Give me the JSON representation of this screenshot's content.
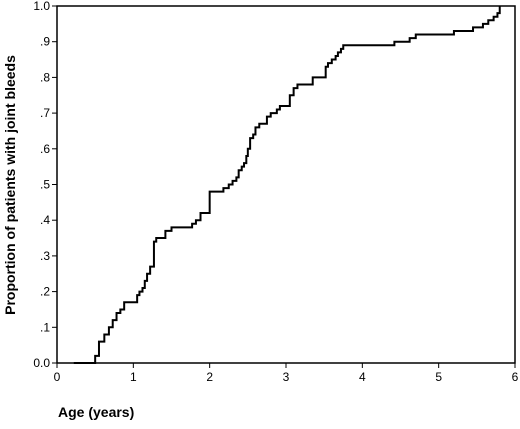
{
  "chart_data": {
    "type": "line",
    "step": true,
    "title": "",
    "xlabel": "Age (years)",
    "ylabel": "Proportion of patients with joint bleeds",
    "xlim": [
      0,
      6
    ],
    "ylim": [
      0,
      1
    ],
    "x_ticks": [
      0,
      1,
      2,
      3,
      4,
      5,
      6
    ],
    "x_tick_labels": [
      "0",
      "1",
      "2",
      "3",
      "4",
      "5",
      "6"
    ],
    "y_ticks": [
      0,
      0.1,
      0.2,
      0.3,
      0.4,
      0.5,
      0.6,
      0.7,
      0.8,
      0.9,
      1.0
    ],
    "y_tick_labels": [
      "0.0",
      ".1",
      ".2",
      ".3",
      ".4",
      ".5",
      ".6",
      ".7",
      ".8",
      ".9",
      "1.0"
    ],
    "grid": false,
    "line_color": "#000000",
    "series": [
      {
        "x": [
          0.22,
          0.5,
          0.55,
          0.62,
          0.68,
          0.73,
          0.78,
          0.83,
          0.88,
          1.05,
          1.08,
          1.12,
          1.15,
          1.18,
          1.22,
          1.27,
          1.3,
          1.42,
          1.5,
          1.55,
          1.77,
          1.82,
          1.88,
          1.93,
          2.0,
          2.18,
          2.25,
          2.3,
          2.35,
          2.38,
          2.42,
          2.45,
          2.48,
          2.5,
          2.53,
          2.57,
          2.6,
          2.65,
          2.75,
          2.8,
          2.88,
          2.92,
          2.98,
          3.05,
          3.1,
          3.15,
          3.35,
          3.45,
          3.52,
          3.55,
          3.6,
          3.65,
          3.68,
          3.72,
          3.75,
          4.3,
          4.42,
          4.62,
          4.7,
          5.03,
          5.2,
          5.45,
          5.58,
          5.65,
          5.72,
          5.77,
          5.8
        ],
        "y": [
          0.0,
          0.02,
          0.06,
          0.08,
          0.1,
          0.12,
          0.14,
          0.15,
          0.17,
          0.19,
          0.2,
          0.21,
          0.23,
          0.25,
          0.27,
          0.34,
          0.35,
          0.37,
          0.38,
          0.38,
          0.39,
          0.4,
          0.42,
          0.42,
          0.48,
          0.49,
          0.5,
          0.51,
          0.52,
          0.54,
          0.55,
          0.56,
          0.58,
          0.6,
          0.63,
          0.64,
          0.66,
          0.67,
          0.69,
          0.7,
          0.71,
          0.72,
          0.72,
          0.75,
          0.77,
          0.78,
          0.8,
          0.8,
          0.83,
          0.84,
          0.85,
          0.86,
          0.87,
          0.88,
          0.89,
          0.89,
          0.9,
          0.91,
          0.92,
          0.92,
          0.93,
          0.94,
          0.95,
          0.96,
          0.97,
          0.98,
          1.0
        ]
      }
    ]
  }
}
